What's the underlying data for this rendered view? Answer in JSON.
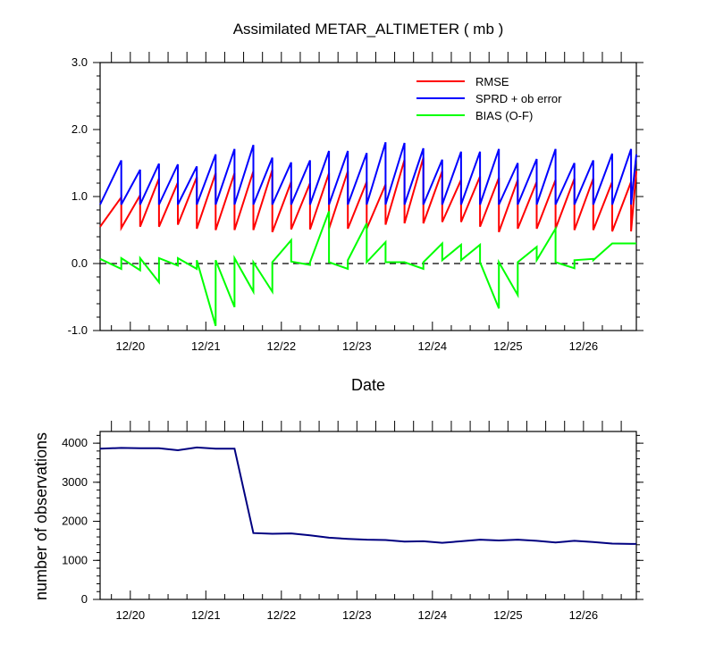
{
  "chart_data": [
    {
      "type": "line",
      "title": "Assimilated METAR_ALTIMETER ( mb )",
      "xlabel": "Date",
      "ylabel": "",
      "ylim": [
        -1.0,
        3.0
      ],
      "xlim": [
        19.6,
        26.7
      ],
      "x_tick_labels": [
        "12/20",
        "12/21",
        "12/22",
        "12/23",
        "12/24",
        "12/25",
        "12/26"
      ],
      "y_tick_labels": [
        "-1.0",
        "0.0",
        "1.0",
        "2.0",
        "3.0"
      ],
      "legend_position": "top-right",
      "zero_line": true,
      "colors": {
        "rmse": "#ff0000",
        "sprd": "#0000ff",
        "bias": "#00ff00"
      },
      "series": [
        {
          "name": "RMSE",
          "key": "rmse",
          "color": "#ff0000",
          "x": [
            19.6,
            19.88,
            19.88,
            20.13,
            20.13,
            20.38,
            20.38,
            20.63,
            20.63,
            20.88,
            20.88,
            21.13,
            21.13,
            21.38,
            21.38,
            21.63,
            21.63,
            21.88,
            21.88,
            22.13,
            22.13,
            22.38,
            22.38,
            22.63,
            22.63,
            22.88,
            22.88,
            23.13,
            23.13,
            23.38,
            23.38,
            23.63,
            23.63,
            23.88,
            23.88,
            24.13,
            24.13,
            24.38,
            24.38,
            24.63,
            24.63,
            24.88,
            24.88,
            25.13,
            25.13,
            25.38,
            25.38,
            25.63,
            25.63,
            25.88,
            25.88,
            26.13,
            26.13,
            26.38,
            26.38,
            26.63,
            26.63,
            26.7
          ],
          "values": [
            0.55,
            0.99,
            0.53,
            1.02,
            0.55,
            1.27,
            0.55,
            1.21,
            0.58,
            1.29,
            0.52,
            1.35,
            0.5,
            1.35,
            0.5,
            1.38,
            0.5,
            1.4,
            0.47,
            1.22,
            0.51,
            1.2,
            0.51,
            1.35,
            0.52,
            1.38,
            0.52,
            1.22,
            0.52,
            1.18,
            0.58,
            1.55,
            0.6,
            1.58,
            0.6,
            1.38,
            0.62,
            1.25,
            0.62,
            1.3,
            0.55,
            1.28,
            0.47,
            1.25,
            0.52,
            1.22,
            0.52,
            1.25,
            0.52,
            1.27,
            0.5,
            1.27,
            0.5,
            1.22,
            0.48,
            1.22,
            0.48,
            1.38
          ]
        },
        {
          "name": "SPRD + ob error",
          "key": "sprd",
          "color": "#0000ff",
          "x": [
            19.6,
            19.88,
            19.88,
            20.13,
            20.13,
            20.38,
            20.38,
            20.63,
            20.63,
            20.88,
            20.88,
            21.13,
            21.13,
            21.38,
            21.38,
            21.63,
            21.63,
            21.88,
            21.88,
            22.13,
            22.13,
            22.38,
            22.38,
            22.63,
            22.63,
            22.88,
            22.88,
            23.13,
            23.13,
            23.38,
            23.38,
            23.63,
            23.63,
            23.88,
            23.88,
            24.13,
            24.13,
            24.38,
            24.38,
            24.63,
            24.63,
            24.88,
            24.88,
            25.13,
            25.13,
            25.38,
            25.38,
            25.63,
            25.63,
            25.88,
            25.88,
            26.13,
            26.13,
            26.38,
            26.38,
            26.63,
            26.63,
            26.7
          ],
          "values": [
            0.88,
            1.54,
            0.88,
            1.4,
            0.88,
            1.49,
            0.88,
            1.48,
            0.88,
            1.45,
            0.88,
            1.63,
            0.88,
            1.71,
            0.88,
            1.77,
            0.88,
            1.58,
            0.88,
            1.51,
            0.88,
            1.54,
            0.88,
            1.68,
            0.88,
            1.68,
            0.88,
            1.65,
            0.88,
            1.81,
            0.88,
            1.8,
            0.88,
            1.72,
            0.88,
            1.55,
            0.88,
            1.67,
            0.88,
            1.67,
            0.88,
            1.71,
            0.88,
            1.5,
            0.88,
            1.56,
            0.88,
            1.71,
            0.88,
            1.5,
            0.88,
            1.54,
            0.88,
            1.64,
            0.88,
            1.71,
            0.88,
            1.63
          ]
        },
        {
          "name": "BIAS (O-F)",
          "key": "bias",
          "color": "#00ff00",
          "x": [
            19.6,
            19.88,
            19.88,
            20.13,
            20.13,
            20.38,
            20.38,
            20.63,
            20.63,
            20.88,
            20.88,
            21.13,
            21.13,
            21.38,
            21.38,
            21.63,
            21.63,
            21.88,
            21.88,
            22.13,
            22.13,
            22.38,
            22.38,
            22.63,
            22.63,
            22.88,
            22.88,
            23.13,
            23.13,
            23.38,
            23.38,
            23.63,
            23.63,
            23.88,
            23.88,
            24.13,
            24.13,
            24.38,
            24.38,
            24.63,
            24.63,
            24.88,
            24.88,
            25.13,
            25.13,
            25.38,
            25.38,
            25.63,
            25.63,
            25.88,
            25.88,
            26.13,
            26.13,
            26.38,
            26.38,
            26.63,
            26.63,
            26.7
          ],
          "values": [
            0.07,
            -0.08,
            0.08,
            -0.1,
            0.08,
            -0.28,
            0.08,
            -0.03,
            0.08,
            -0.08,
            0.05,
            -0.93,
            0.05,
            -0.65,
            0.08,
            -0.42,
            0.02,
            -0.42,
            0.02,
            0.35,
            0.03,
            -0.02,
            0.02,
            0.78,
            0.02,
            -0.08,
            0.05,
            0.6,
            0.02,
            0.32,
            0.02,
            0.02,
            0.02,
            -0.08,
            0.02,
            0.3,
            0.05,
            0.28,
            0.05,
            0.28,
            0.02,
            -0.67,
            0.02,
            -0.47,
            0.02,
            0.25,
            0.05,
            0.52,
            0.02,
            -0.07,
            0.05,
            0.07,
            0.05,
            0.3,
            0.3,
            0.3,
            0.3,
            0.3
          ]
        }
      ]
    },
    {
      "type": "line",
      "title": "",
      "xlabel": "",
      "ylabel": "number of observations",
      "ylim": [
        0,
        4300
      ],
      "xlim": [
        19.6,
        26.7
      ],
      "x_tick_labels": [
        "12/20",
        "12/21",
        "12/22",
        "12/23",
        "12/24",
        "12/25",
        "12/26"
      ],
      "y_tick_labels": [
        "0",
        "1000",
        "2000",
        "3000",
        "4000"
      ],
      "series": [
        {
          "name": "observations",
          "color": "#000080",
          "x": [
            19.6,
            19.88,
            20.13,
            20.38,
            20.63,
            20.88,
            21.13,
            21.38,
            21.63,
            21.88,
            22.13,
            22.38,
            22.63,
            22.88,
            23.13,
            23.38,
            23.63,
            23.88,
            24.13,
            24.38,
            24.63,
            24.88,
            25.13,
            25.38,
            25.63,
            25.88,
            26.13,
            26.38,
            26.63,
            26.7
          ],
          "values": [
            3860,
            3880,
            3870,
            3870,
            3820,
            3890,
            3860,
            3860,
            1700,
            1680,
            1690,
            1640,
            1580,
            1550,
            1530,
            1520,
            1480,
            1490,
            1450,
            1490,
            1530,
            1510,
            1530,
            1500,
            1460,
            1500,
            1470,
            1430,
            1420,
            1420
          ]
        }
      ]
    }
  ]
}
